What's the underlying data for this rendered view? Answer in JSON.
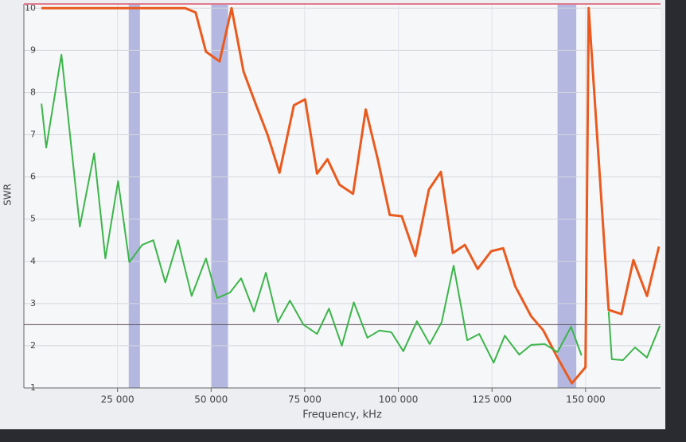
{
  "chart_data": {
    "type": "line",
    "y_label": "SWR",
    "x_label": "Frequency, kHz",
    "xlim": [
      0,
      170000
    ],
    "ylim": [
      1,
      10.1
    ],
    "xticks": [
      {
        "value": 25000,
        "label": "25 000"
      },
      {
        "value": 50000,
        "label": "50 000"
      },
      {
        "value": 75000,
        "label": "75 000"
      },
      {
        "value": 100000,
        "label": "100 000"
      },
      {
        "value": 125000,
        "label": "125 000"
      },
      {
        "value": 150000,
        "label": "150 000"
      }
    ],
    "yticks": [
      1,
      2,
      3,
      4,
      5,
      6,
      7,
      8,
      9,
      10
    ],
    "grid": true,
    "bands": [
      {
        "from": 28000,
        "to": 31000,
        "color": "#9ea3d8"
      },
      {
        "from": 50000,
        "to": 54500,
        "color": "#9ea3d8"
      },
      {
        "from": 142500,
        "to": 147500,
        "color": "#9ea3d8"
      }
    ],
    "hlines": [
      {
        "value": 2.5,
        "color": "#5a4a55"
      }
    ],
    "series": [
      {
        "name": "orange",
        "color": "#ea5a1e",
        "x": [
          4690,
          43090,
          45860,
          48630,
          52260,
          55460,
          58660,
          61860,
          65060,
          68260,
          72100,
          75090,
          78280,
          81060,
          84260,
          87880,
          91300,
          94500,
          97700,
          100900,
          104520,
          108150,
          111350,
          114550,
          117750,
          121160,
          124790,
          127990,
          131190,
          135450,
          138650,
          142490,
          146330,
          149960,
          150810,
          156140,
          159560,
          162760,
          166380,
          169580
        ],
        "values": [
          10,
          10,
          9.9,
          8.97,
          8.74,
          10,
          8.5,
          7.74,
          7,
          6.1,
          7.7,
          7.84,
          6.08,
          6.42,
          5.82,
          5.6,
          7.6,
          6.42,
          5.1,
          5.07,
          4.13,
          5.7,
          6.12,
          4.2,
          4.39,
          3.82,
          4.24,
          4.31,
          3.41,
          2.7,
          2.37,
          1.72,
          1.11,
          1.49,
          10,
          2.85,
          2.75,
          4.03,
          3.18,
          4.35
        ]
      },
      {
        "name": "green",
        "color": "#3cb54a",
        "x": [
          4690,
          5970,
          10030,
          14930,
          18770,
          21760,
          25170,
          28160,
          31570,
          34560,
          37760,
          41170,
          44800,
          48630,
          51620,
          55030,
          58020,
          61430,
          64630,
          67830,
          71030,
          74660,
          78280,
          81480,
          84900,
          88100,
          91720,
          94920,
          98120,
          101320,
          104950,
          108360,
          111560,
          114760,
          118390,
          121590,
          125430,
          128410,
          132250,
          135450,
          139080,
          142490,
          146120,
          148890,
          152000,
          156140,
          156990,
          159980,
          163180,
          166380,
          169800
        ],
        "values": [
          7.74,
          6.7,
          8.9,
          4.82,
          6.56,
          4.07,
          5.9,
          3.98,
          4.39,
          4.5,
          3.5,
          4.5,
          3.18,
          4.07,
          3.13,
          3.26,
          3.6,
          2.81,
          3.73,
          2.56,
          3.07,
          2.5,
          2.28,
          2.88,
          2.0,
          3.03,
          2.19,
          2.36,
          2.32,
          1.87,
          2.58,
          2.04,
          2.56,
          3.9,
          2.13,
          2.28,
          1.6,
          2.24,
          1.79,
          2.02,
          2.04,
          1.85,
          2.45,
          1.77,
          null,
          2.81,
          1.68,
          1.66,
          1.96,
          1.72,
          2.47
        ]
      }
    ]
  }
}
